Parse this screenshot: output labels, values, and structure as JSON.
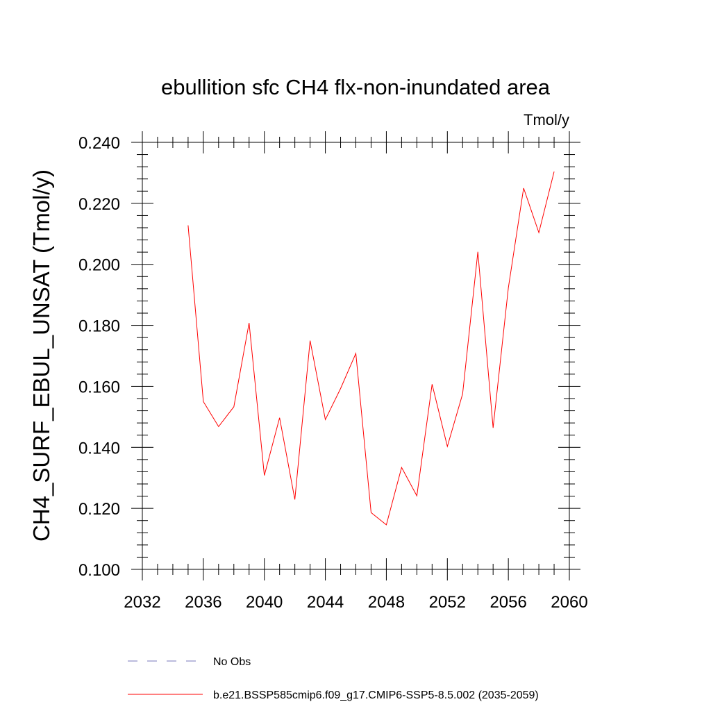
{
  "chart_data": {
    "type": "line",
    "title": "ebullition sfc CH4 flx-non-inundated area",
    "units": "Tmol/y",
    "ylabel": "CH4_SURF_EBUL_UNSAT  (Tmol/y)",
    "xlabel": "",
    "xlim": [
      2032,
      2060
    ],
    "ylim": [
      0.1,
      0.24
    ],
    "x_ticks": [
      2032,
      2036,
      2040,
      2044,
      2048,
      2052,
      2056,
      2060
    ],
    "x_tick_labels": [
      "2032",
      "2036",
      "2040",
      "2044",
      "2048",
      "2052",
      "2056",
      "2060"
    ],
    "y_ticks": [
      0.1,
      0.12,
      0.14,
      0.16,
      0.18,
      0.2,
      0.22,
      0.24
    ],
    "y_tick_labels": [
      "0.100",
      "0.120",
      "0.140",
      "0.160",
      "0.180",
      "0.200",
      "0.220",
      "0.240"
    ],
    "grid": false,
    "series": [
      {
        "name": "b.e21.BSSP585cmip6.f09_g17.CMIP6-SSP5-8.5.002 (2035-2059)",
        "color": "#ff0000",
        "x": [
          2035,
          2036,
          2037,
          2038,
          2039,
          2040,
          2041,
          2042,
          2043,
          2044,
          2045,
          2046,
          2047,
          2048,
          2049,
          2050,
          2051,
          2052,
          2053,
          2054,
          2055,
          2056,
          2057,
          2058,
          2059
        ],
        "values": [
          0.2128,
          0.155,
          0.1468,
          0.1533,
          0.1808,
          0.1308,
          0.1497,
          0.1229,
          0.175,
          0.1491,
          0.1593,
          0.1708,
          0.1186,
          0.1146,
          0.1334,
          0.1241,
          0.1607,
          0.1403,
          0.1575,
          0.2041,
          0.1464,
          0.1923,
          0.225,
          0.2104,
          0.2304
        ]
      }
    ],
    "legend": {
      "placement": "bottom",
      "entries": [
        {
          "label": "No Obs",
          "color": "#7777bb",
          "dash": "dashed"
        },
        {
          "label": "b.e21.BSSP585cmip6.f09_g17.CMIP6-SSP5-8.5.002 (2035-2059)",
          "color": "#ff0000",
          "dash": "solid"
        }
      ]
    }
  }
}
